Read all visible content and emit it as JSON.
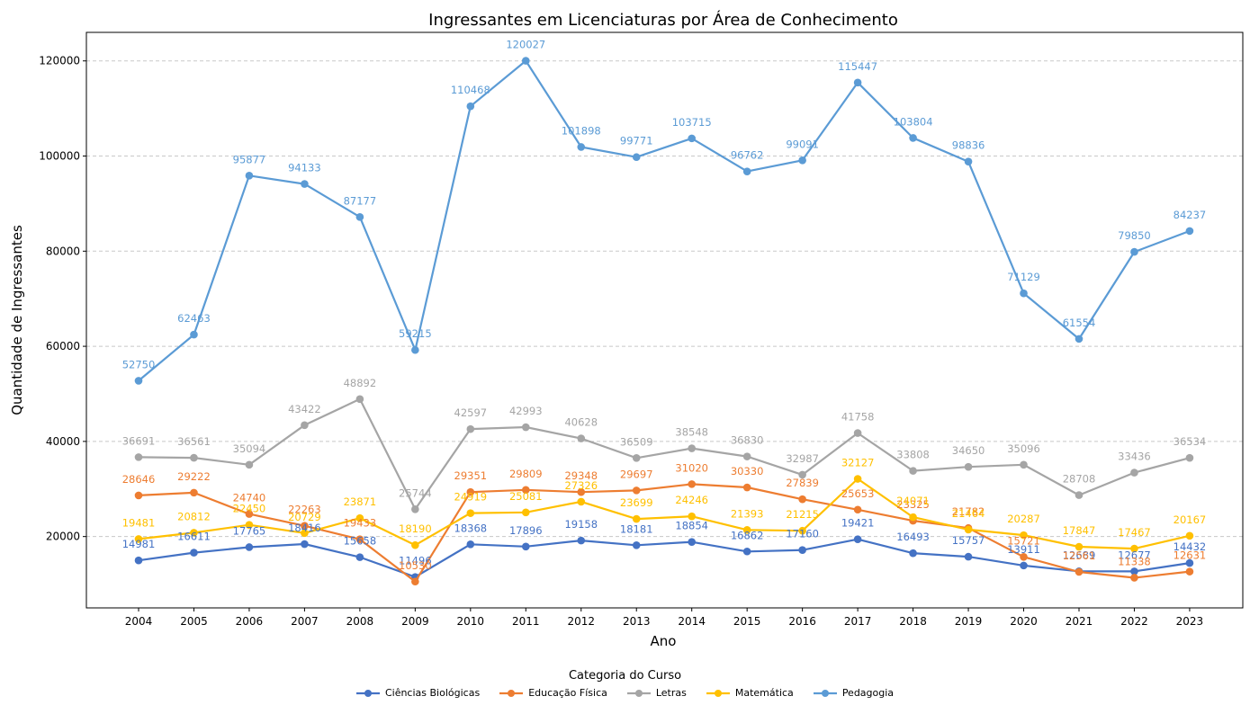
{
  "chart_data": {
    "type": "line",
    "title": "Ingressantes em Licenciaturas por Área de Conhecimento",
    "xlabel": "Ano",
    "ylabel": "Quantidade de Ingressantes",
    "x": [
      "2004",
      "2005",
      "2006",
      "2007",
      "2008",
      "2009",
      "2010",
      "2011",
      "2012",
      "2013",
      "2014",
      "2015",
      "2016",
      "2017",
      "2018",
      "2019",
      "2020",
      "2021",
      "2022",
      "2023"
    ],
    "ylim": [
      5000,
      126000
    ],
    "yticks": [
      20000,
      40000,
      60000,
      80000,
      100000,
      120000
    ],
    "grid": "y-dashed",
    "legend_title": "Categoria do Curso",
    "legend_placement": "bottom-center",
    "series": [
      {
        "name": "Ciências Biológicas",
        "color": "#4472c4",
        "values": [
          14981,
          16611,
          17765,
          18416,
          15658,
          11496,
          18368,
          17896,
          19158,
          18181,
          18854,
          16862,
          17160,
          19421,
          16493,
          15757,
          13911,
          12689,
          12677,
          14432
        ]
      },
      {
        "name": "Educação Física",
        "color": "#ed7d31",
        "values": [
          28646,
          29222,
          24740,
          22263,
          19433,
          10530,
          29351,
          29809,
          29348,
          29697,
          31020,
          30330,
          27839,
          25653,
          23325,
          21782,
          15721,
          12561,
          11338,
          12631
        ]
      },
      {
        "name": "Letras",
        "color": "#a5a5a5",
        "values": [
          36691,
          36561,
          35094,
          43422,
          48892,
          25744,
          42597,
          42993,
          40628,
          36509,
          38548,
          36830,
          32987,
          41758,
          33808,
          34650,
          35096,
          28708,
          33436,
          36534
        ]
      },
      {
        "name": "Matemática",
        "color": "#ffc000",
        "values": [
          19481,
          20812,
          22450,
          20729,
          23871,
          18190,
          24919,
          25081,
          27326,
          23699,
          24246,
          21393,
          21215,
          32127,
          24071,
          21464,
          20287,
          17847,
          17467,
          20167
        ]
      },
      {
        "name": "Pedagogia",
        "color": "#5b9bd5",
        "values": [
          52750,
          62463,
          95877,
          94133,
          87177,
          59215,
          110468,
          120027,
          101898,
          99771,
          103715,
          96762,
          99091,
          115447,
          103804,
          98836,
          71129,
          61554,
          79850,
          84237
        ]
      }
    ]
  }
}
